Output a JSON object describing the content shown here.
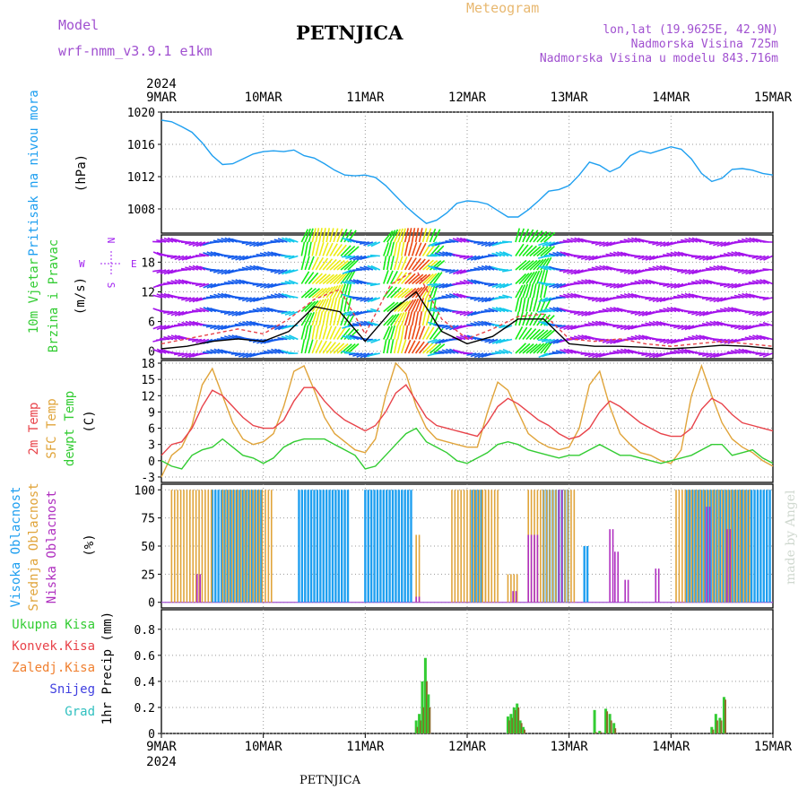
{
  "header": {
    "model_label": "Model",
    "model_name": "wrf-nmm_v3.9.1 e1km",
    "station": "PETNJICA",
    "title": "Meteogram",
    "lonlat": "lon,lat (19.9625E, 42.9N)",
    "elevation": "Nadmorska Visina 725m",
    "elevation_model": "Nadmorska Visina u modelu 843.716m",
    "footer_station": "PETNJICA",
    "watermark": "made by Angel",
    "year": "2024"
  },
  "colors": {
    "pressure": "#1e9ff0",
    "temp2m": "#e8434a",
    "sfc": "#e0a43a",
    "dewpt": "#33cc33",
    "high_cloud": "#1e9ff0",
    "mid_cloud": "#e0a43a",
    "low_cloud": "#b030c0",
    "total_precip": "#33cc33",
    "conv_precip": "#e8434a",
    "freezing": "#f08030",
    "snow": "#4040e0",
    "hail": "#30c0c0",
    "wind_units": "#a020f0"
  },
  "chart_data": [
    {
      "type": "line",
      "panel": "pressure",
      "ylabel": [
        "Pritisak na nivou mora",
        "(hPa)"
      ],
      "ylim": [
        1005,
        1020
      ],
      "yticks": [
        1008,
        1012,
        1016,
        1020
      ],
      "x_dates": [
        "9MAR",
        "10MAR",
        "11MAR",
        "12MAR",
        "13MAR",
        "14MAR",
        "15MAR"
      ],
      "grid": true,
      "series": [
        {
          "key": "slp",
          "x": [
            0,
            0.1,
            0.2,
            0.3,
            0.4,
            0.5,
            0.6,
            0.7,
            0.8,
            0.9,
            1.0,
            1.1,
            1.2,
            1.3,
            1.4,
            1.5,
            1.6,
            1.7,
            1.8,
            1.9,
            2.0,
            2.1,
            2.2,
            2.3,
            2.4,
            2.5,
            2.6,
            2.7,
            2.8,
            2.9,
            3.0,
            3.1,
            3.2,
            3.3,
            3.4,
            3.5,
            3.6,
            3.7,
            3.8,
            3.9,
            4.0,
            4.1,
            4.2,
            4.3,
            4.4,
            4.5,
            4.6,
            4.7,
            4.8,
            4.9,
            5.0,
            5.1,
            5.2,
            5.3,
            5.4,
            5.5,
            5.6,
            5.7,
            5.8,
            5.9,
            6.0
          ],
          "values": [
            1019,
            1018.8,
            1018.2,
            1017.5,
            1016.2,
            1014.6,
            1013.5,
            1013.6,
            1014.2,
            1014.8,
            1015.1,
            1015.2,
            1015.1,
            1015.3,
            1014.6,
            1014.3,
            1013.6,
            1012.8,
            1012.2,
            1012.1,
            1012.2,
            1011.9,
            1010.9,
            1009.6,
            1008.3,
            1007.2,
            1006.2,
            1006.6,
            1007.5,
            1008.7,
            1009.0,
            1008.9,
            1008.6,
            1007.8,
            1007.0,
            1007.0,
            1007.9,
            1009.0,
            1010.2,
            1010.4,
            1010.9,
            1012.2,
            1013.8,
            1013.4,
            1012.6,
            1013.2,
            1014.6,
            1015.2,
            1014.9,
            1015.3,
            1015.7,
            1015.4,
            1014.2,
            1012.4,
            1011.4,
            1011.8,
            1012.9,
            1013.0,
            1012.8,
            1012.4,
            1012.2
          ]
        }
      ]
    },
    {
      "type": "line",
      "panel": "wind",
      "ylabel": [
        "10m Vjetar",
        "Brzina i Pravac",
        "(m/s)"
      ],
      "ylim": [
        -1.5,
        23.5
      ],
      "yticks": [
        0,
        6,
        12,
        18
      ],
      "compass": [
        "N",
        "E",
        "S",
        "W"
      ],
      "grid": true,
      "series": [
        {
          "key": "gust",
          "style": "dashed",
          "x": [
            0,
            0.25,
            0.5,
            0.75,
            1.0,
            1.25,
            1.5,
            1.75,
            2.0,
            2.25,
            2.5,
            2.75,
            3.0,
            3.25,
            3.5,
            3.75,
            4.0,
            4.25,
            4.5,
            4.75,
            5.0,
            5.25,
            5.5,
            5.75,
            6.0
          ],
          "values": [
            1.5,
            2.5,
            3.5,
            4.5,
            3.5,
            6.5,
            10.5,
            12.5,
            3.5,
            13.5,
            16.5,
            6.5,
            2.5,
            4.5,
            7.0,
            7.5,
            2.5,
            2.0,
            2.5,
            1.5,
            1.0,
            1.5,
            2.0,
            1.5,
            1.0
          ]
        },
        {
          "key": "speed",
          "style": "solid",
          "x": [
            0,
            0.25,
            0.5,
            0.75,
            1.0,
            1.25,
            1.5,
            1.75,
            2.0,
            2.25,
            2.5,
            2.75,
            3.0,
            3.25,
            3.5,
            3.75,
            4.0,
            4.25,
            4.5,
            4.75,
            5.0,
            5.25,
            5.5,
            5.75,
            6.0
          ],
          "values": [
            0.5,
            1.0,
            2.0,
            2.5,
            2.0,
            4.0,
            9.0,
            8.0,
            2.0,
            8.0,
            12.0,
            4.0,
            1.5,
            3.0,
            6.5,
            6.5,
            1.5,
            1.0,
            1.0,
            0.8,
            0.5,
            0.8,
            1.2,
            1.0,
            0.5
          ]
        }
      ]
    },
    {
      "type": "line",
      "panel": "temperature",
      "ylabel": [
        "2m Temp",
        "SFC Temp",
        "dewpt Temp",
        "(C)"
      ],
      "ylim": [
        -4,
        18.5
      ],
      "yticks": [
        -3,
        0,
        3,
        6,
        9,
        12,
        15,
        18
      ],
      "grid": true,
      "series": [
        {
          "key": "t2m",
          "x": [
            0,
            0.1,
            0.2,
            0.3,
            0.4,
            0.5,
            0.6,
            0.7,
            0.8,
            0.9,
            1.0,
            1.1,
            1.2,
            1.3,
            1.4,
            1.5,
            1.6,
            1.7,
            1.8,
            1.9,
            2.0,
            2.1,
            2.2,
            2.3,
            2.4,
            2.5,
            2.6,
            2.7,
            2.8,
            2.9,
            3.0,
            3.1,
            3.2,
            3.3,
            3.4,
            3.5,
            3.6,
            3.7,
            3.8,
            3.9,
            4.0,
            4.1,
            4.2,
            4.3,
            4.4,
            4.5,
            4.6,
            4.7,
            4.8,
            4.9,
            5.0,
            5.1,
            5.2,
            5.3,
            5.4,
            5.5,
            5.6,
            5.7,
            5.8,
            5.9,
            6.0
          ],
          "values": [
            1,
            3,
            3.5,
            6,
            10,
            13,
            12,
            10,
            8,
            6.5,
            6,
            6,
            7.5,
            11,
            13.5,
            13.5,
            11,
            9,
            7.5,
            6.5,
            5.5,
            6.5,
            9,
            12.5,
            14,
            11,
            8,
            6.5,
            6,
            5.5,
            5,
            4.5,
            7,
            10,
            11.5,
            10.5,
            9,
            7.5,
            6.5,
            5,
            4,
            4.5,
            6,
            9,
            11,
            10,
            8.5,
            7,
            6,
            5,
            4.5,
            4.5,
            6,
            9.5,
            11.5,
            10.5,
            8.5,
            7,
            6.5,
            6,
            5.5
          ]
        },
        {
          "key": "sfc",
          "x": [
            0,
            0.1,
            0.2,
            0.3,
            0.4,
            0.5,
            0.6,
            0.7,
            0.8,
            0.9,
            1.0,
            1.1,
            1.2,
            1.3,
            1.4,
            1.5,
            1.6,
            1.7,
            1.8,
            1.9,
            2.0,
            2.1,
            2.2,
            2.3,
            2.4,
            2.5,
            2.6,
            2.7,
            2.8,
            2.9,
            3.0,
            3.1,
            3.2,
            3.3,
            3.4,
            3.5,
            3.6,
            3.7,
            3.8,
            3.9,
            4.0,
            4.1,
            4.2,
            4.3,
            4.4,
            4.5,
            4.6,
            4.7,
            4.8,
            4.9,
            5.0,
            5.1,
            5.2,
            5.3,
            5.4,
            5.5,
            5.6,
            5.7,
            5.8,
            5.9,
            6.0
          ],
          "values": [
            -3,
            1,
            2.5,
            6.5,
            14,
            17,
            12,
            7,
            4,
            3,
            3.5,
            5,
            10,
            16.5,
            17.5,
            13,
            8,
            5,
            3.5,
            2,
            1.5,
            4,
            12,
            18,
            16,
            10,
            6,
            4,
            3.5,
            3,
            2.5,
            2.5,
            9,
            14.5,
            13,
            9,
            5,
            3.5,
            2.5,
            2,
            2.5,
            6,
            14,
            16.5,
            10,
            5,
            3,
            1.5,
            1,
            0,
            -0.5,
            2,
            12,
            17.5,
            12,
            7,
            4,
            2.5,
            1.5,
            0,
            -1
          ]
        },
        {
          "key": "dewpt",
          "x": [
            0,
            0.1,
            0.2,
            0.3,
            0.4,
            0.5,
            0.6,
            0.7,
            0.8,
            0.9,
            1.0,
            1.1,
            1.2,
            1.3,
            1.4,
            1.5,
            1.6,
            1.7,
            1.8,
            1.9,
            2.0,
            2.1,
            2.2,
            2.3,
            2.4,
            2.5,
            2.6,
            2.7,
            2.8,
            2.9,
            3.0,
            3.1,
            3.2,
            3.3,
            3.4,
            3.5,
            3.6,
            3.7,
            3.8,
            3.9,
            4.0,
            4.1,
            4.2,
            4.3,
            4.4,
            4.5,
            4.6,
            4.7,
            4.8,
            4.9,
            5.0,
            5.1,
            5.2,
            5.3,
            5.4,
            5.5,
            5.6,
            5.7,
            5.8,
            5.9,
            6.0
          ],
          "values": [
            0,
            -1,
            -1.5,
            1,
            2,
            2.5,
            4,
            2.5,
            1,
            0.5,
            -0.5,
            0.5,
            2.5,
            3.5,
            4,
            4,
            4,
            3,
            2,
            1,
            -1.5,
            -1,
            1,
            3,
            5,
            6,
            3.5,
            2.5,
            1.5,
            0,
            -0.5,
            0.5,
            1.5,
            3,
            3.5,
            3,
            2,
            1.5,
            1,
            0.5,
            1,
            1,
            2,
            3,
            2,
            1,
            1,
            0.5,
            0,
            -0.5,
            0,
            0.5,
            1,
            2,
            3,
            3,
            1,
            1.5,
            2,
            0.5,
            -0.5
          ]
        }
      ]
    },
    {
      "type": "bar",
      "panel": "cloud",
      "ylabel": [
        "Visoka Oblacnost",
        "Srednja Oblacnost",
        "Niska Oblacnost",
        "(%)"
      ],
      "ylim": [
        -5,
        105
      ],
      "yticks": [
        0,
        25,
        50,
        75,
        100
      ],
      "grid": true,
      "series": [
        {
          "key": "high",
          "name": "Visoka Oblacnost",
          "ranges": [
            [
              0.5,
              1.0,
              100
            ],
            [
              1.35,
              1.85,
              100
            ],
            [
              2.0,
              2.45,
              100
            ],
            [
              3.05,
              3.15,
              100
            ],
            [
              3.75,
              4.0,
              100
            ],
            [
              4.15,
              4.2,
              50
            ],
            [
              5.15,
              5.7,
              100
            ],
            [
              5.7,
              6.0,
              100
            ]
          ]
        },
        {
          "key": "mid",
          "name": "Srednja Oblacnost",
          "ranges": [
            [
              0.1,
              0.5,
              100
            ],
            [
              0.6,
              1.1,
              100
            ],
            [
              2.5,
              2.55,
              60
            ],
            [
              2.85,
              3.2,
              100
            ],
            [
              3.15,
              3.3,
              100
            ],
            [
              3.4,
              3.5,
              25
            ],
            [
              3.6,
              4.05,
              100
            ],
            [
              5.05,
              5.2,
              100
            ],
            [
              5.2,
              5.8,
              100
            ]
          ]
        },
        {
          "key": "low",
          "name": "Niska Oblacnost",
          "ranges": [
            [
              0.35,
              0.4,
              25
            ],
            [
              2.5,
              2.55,
              5
            ],
            [
              3.45,
              3.5,
              10
            ],
            [
              3.6,
              3.7,
              60
            ],
            [
              3.9,
              3.95,
              100
            ],
            [
              4.4,
              4.45,
              65
            ],
            [
              4.45,
              4.5,
              45
            ],
            [
              4.55,
              4.6,
              20
            ],
            [
              4.85,
              4.9,
              30
            ],
            [
              5.35,
              5.4,
              85
            ],
            [
              5.55,
              5.6,
              65
            ]
          ]
        }
      ]
    },
    {
      "type": "bar",
      "panel": "precip",
      "ylabel": [
        "1hr Precip (mm)"
      ],
      "legend": [
        "Ukupna Kisa",
        "Konvek.Kisa",
        "Zaledj.Kisa",
        "Snijeg",
        "Grad"
      ],
      "ylim": [
        0,
        0.95
      ],
      "yticks": [
        0,
        0.2,
        0.4,
        0.6,
        0.8
      ],
      "x_dates": [
        "9MAR",
        "10MAR",
        "11MAR",
        "12MAR",
        "13MAR",
        "14MAR",
        "15MAR"
      ],
      "grid": true,
      "bars": [
        {
          "x": 2.5,
          "total": 0.1,
          "conv": 0.05
        },
        {
          "x": 2.53,
          "total": 0.15,
          "conv": 0.1
        },
        {
          "x": 2.56,
          "total": 0.4,
          "conv": 0.2
        },
        {
          "x": 2.59,
          "total": 0.58,
          "conv": 0.4
        },
        {
          "x": 2.62,
          "total": 0.3,
          "conv": 0.2
        },
        {
          "x": 3.4,
          "total": 0.13,
          "conv": 0.1
        },
        {
          "x": 3.43,
          "total": 0.15,
          "conv": 0.12
        },
        {
          "x": 3.46,
          "total": 0.2,
          "conv": 0.18
        },
        {
          "x": 3.49,
          "total": 0.23,
          "conv": 0.2
        },
        {
          "x": 3.52,
          "total": 0.1,
          "conv": 0.08
        },
        {
          "x": 3.55,
          "total": 0.05,
          "conv": 0.03
        },
        {
          "x": 4.25,
          "total": 0.18,
          "conv": 0.01
        },
        {
          "x": 4.3,
          "total": 0.02,
          "conv": 0.01
        },
        {
          "x": 4.36,
          "total": 0.19,
          "conv": 0.17
        },
        {
          "x": 4.4,
          "total": 0.15,
          "conv": 0.1
        },
        {
          "x": 4.44,
          "total": 0.08,
          "conv": 0.04
        },
        {
          "x": 5.4,
          "total": 0.05,
          "conv": 0.03
        },
        {
          "x": 5.44,
          "total": 0.15,
          "conv": 0.1
        },
        {
          "x": 5.48,
          "total": 0.12,
          "conv": 0.1
        },
        {
          "x": 5.52,
          "total": 0.28,
          "conv": 0.26
        }
      ]
    }
  ]
}
